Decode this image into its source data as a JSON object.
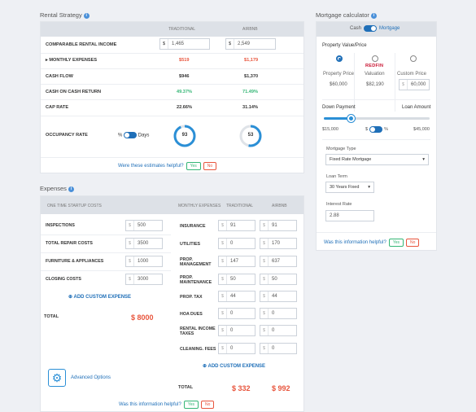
{
  "rental": {
    "title": "Rental Strategy",
    "col_traditional": "TRADITIONAL",
    "col_airbnb": "AIRBNB",
    "comparable_label": "COMPARABLE RENTAL INCOME",
    "comparable_trad": "1,465",
    "comparable_airbnb": "2,549",
    "currency": "$",
    "monthly_expenses_label": "MONTHLY EXPENSES",
    "monthly_expenses_trad": "$519",
    "monthly_expenses_airbnb": "$1,179",
    "cash_flow_label": "CASH FLOW",
    "cash_flow_trad": "$946",
    "cash_flow_airbnb": "$1,370",
    "coc_label": "CASH ON CASH RETURN",
    "coc_trad": "49.37%",
    "coc_airbnb": "71.49%",
    "cap_label": "CAP RATE",
    "cap_trad": "22.66%",
    "cap_airbnb": "31.14%",
    "occupancy_label": "OCCUPANCY RATE",
    "occ_percent_sym": "%",
    "occ_days": "Days",
    "occ_trad": "93",
    "occ_airbnb": "53",
    "helpful": "Were these estimates helpful?",
    "yes": "Yes",
    "no": "No"
  },
  "expenses": {
    "title": "Expenses",
    "startup_header": "ONE TIME STARTUP COSTS",
    "monthly_header": "MONTHLY EXPENSES",
    "col_traditional": "TRADITIONAL",
    "col_airbnb": "AIRBNB",
    "startup": [
      {
        "label": "INSPECTIONS",
        "value": "500"
      },
      {
        "label": "TOTAL REPAIR COSTS",
        "value": "3500"
      },
      {
        "label": "FURNITURE & APPLIANCES",
        "value": "1000"
      },
      {
        "label": "CLOSING COSTS",
        "value": "3000"
      }
    ],
    "add_custom": "ADD CUSTOM EXPENSE",
    "total_label": "TOTAL",
    "startup_total": "$ 8000",
    "monthly": [
      {
        "label": "INSURANCE",
        "trad": "91",
        "airbnb": "91"
      },
      {
        "label": "UTILITIES",
        "trad": "0",
        "airbnb": "170"
      },
      {
        "label": "PROP. MANAGEMENT",
        "trad": "147",
        "airbnb": "637"
      },
      {
        "label": "PROP. MAINTENANCE",
        "trad": "50",
        "airbnb": "50"
      },
      {
        "label": "PROP. TAX",
        "trad": "44",
        "airbnb": "44"
      },
      {
        "label": "HOA DUES",
        "trad": "0",
        "airbnb": "0"
      },
      {
        "label": "RENTAL INCOME TAXES",
        "trad": "0",
        "airbnb": "0"
      },
      {
        "label": "CLEANING. FEES",
        "trad": "0",
        "airbnb": "0"
      }
    ],
    "monthly_total_trad": "$ 332",
    "monthly_total_airbnb": "$ 992",
    "advanced": "Advanced Options",
    "helpful": "Was this information helpful?",
    "yes": "Yes",
    "no": "No"
  },
  "mortgage": {
    "title": "Mortgage calculator",
    "cash": "Cash",
    "mortgage": "Mortgage",
    "property_value": "Property Value/Price",
    "redfin": "REDFIN",
    "opt1_label": "Property Price",
    "opt1_value": "$60,000",
    "opt2_label": "Valuation",
    "opt2_value": "$82,190",
    "opt3_label": "Custom Price",
    "opt3_value": "60,000",
    "down_payment": "Down Payment",
    "loan_amount": "Loan Amount",
    "down_value": "$15,000",
    "loan_value": "$45,000",
    "dollar": "$",
    "percent": "%",
    "down_fraction": 0.25,
    "mortgage_type_label": "Mortgage Type",
    "mortgage_type": "Fixed Rate Mortgage",
    "loan_term_label": "Loan Term",
    "loan_term": "30 Years Fixed",
    "interest_label": "Interest Rate",
    "interest": "2.88",
    "helpful": "Was this information helpful?",
    "yes": "Yes",
    "no": "No"
  },
  "colors": {
    "accent": "#1f6fb8",
    "red": "#e8553d",
    "green": "#35b676"
  },
  "icons": [
    "info-icon",
    "caret-right-icon",
    "gear-icon",
    "plus-circle-icon",
    "chevron-down-icon"
  ]
}
